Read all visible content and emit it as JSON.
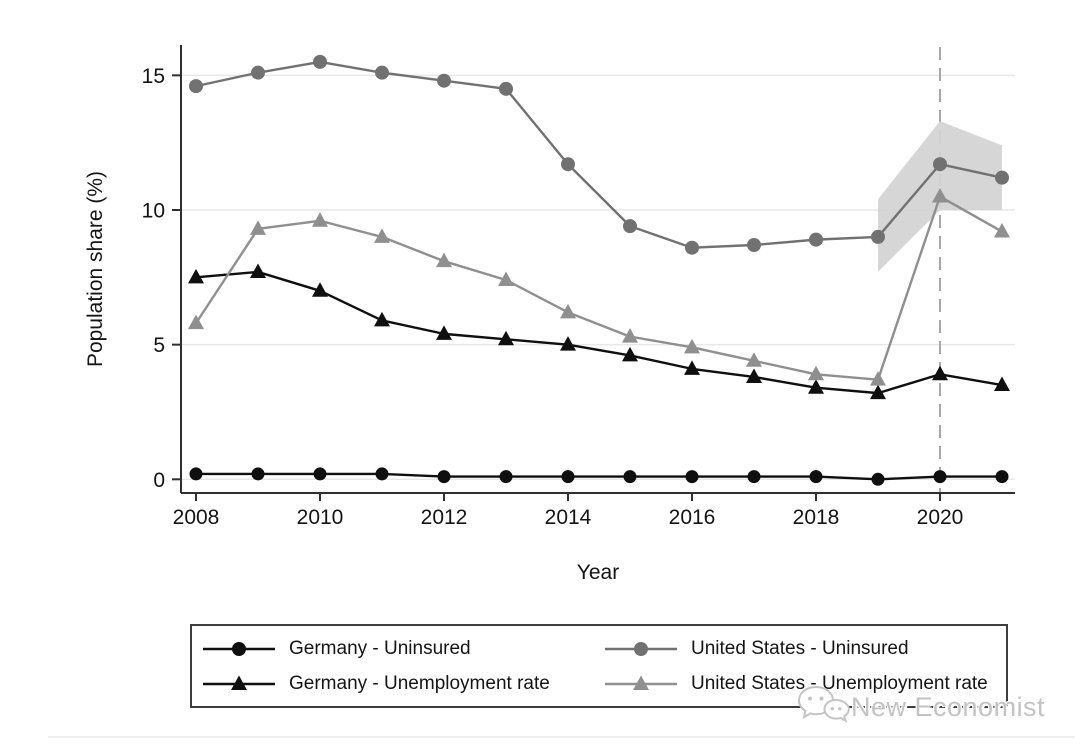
{
  "axes": {
    "y_label": "Population share (%)",
    "x_label": "Year",
    "y_ticks": [
      0,
      5,
      10,
      15
    ],
    "x_ticks": [
      2008,
      2010,
      2012,
      2014,
      2016,
      2018,
      2020
    ],
    "ylim": [
      0,
      16.1
    ],
    "xlim": [
      2008,
      2021
    ]
  },
  "chart_data": {
    "type": "line",
    "title": "",
    "xlabel": "Year",
    "ylabel": "Population share (%)",
    "grid": "horizontal",
    "legend_position": "bottom",
    "x": [
      2008,
      2009,
      2010,
      2011,
      2012,
      2013,
      2014,
      2015,
      2016,
      2017,
      2018,
      2019,
      2020,
      2021
    ],
    "series": [
      {
        "name": "Germany - Uninsured",
        "marker": "circle",
        "color": "#0f0f0f",
        "marker_size": 6.5,
        "values": [
          0.2,
          0.2,
          0.2,
          0.2,
          0.1,
          0.1,
          0.1,
          0.1,
          0.1,
          0.1,
          0.1,
          0.0,
          0.1,
          0.1
        ]
      },
      {
        "name": "Germany - Unemployment rate",
        "marker": "triangle",
        "color": "#0f0f0f",
        "marker_size": 8,
        "values": [
          7.5,
          7.7,
          7.0,
          5.9,
          5.4,
          5.2,
          5.0,
          4.6,
          4.1,
          3.8,
          3.4,
          3.2,
          3.9,
          3.5
        ]
      },
      {
        "name": "United States - Uninsured",
        "marker": "circle",
        "color": "#717171",
        "marker_size": 7,
        "values": [
          14.6,
          15.1,
          15.5,
          15.1,
          14.8,
          14.5,
          11.7,
          9.4,
          8.6,
          8.7,
          8.9,
          9.0,
          11.7,
          11.2
        ]
      },
      {
        "name": "United States - Unemployment rate",
        "marker": "triangle",
        "color": "#8f8f8f",
        "marker_size": 8,
        "values": [
          5.8,
          9.3,
          9.6,
          9.0,
          8.1,
          7.4,
          6.2,
          5.3,
          4.9,
          4.4,
          3.9,
          3.7,
          10.5,
          9.2
        ]
      }
    ],
    "confidence_band": {
      "series": "United States - Uninsured",
      "x": [
        2019,
        2020,
        2021
      ],
      "upper": [
        10.4,
        13.3,
        12.4
      ],
      "lower": [
        7.7,
        10.0,
        10.0
      ],
      "color": "#d3d3d3"
    },
    "vline": {
      "x": 2020,
      "style": "dashed",
      "color": "#a8a8a8"
    }
  },
  "legend": {
    "entries": [
      {
        "label": "Germany - Uninsured",
        "marker": "circle",
        "color": "#0f0f0f"
      },
      {
        "label": "Germany - Unemployment rate",
        "marker": "triangle",
        "color": "#0f0f0f"
      },
      {
        "label": "United States - Uninsured",
        "marker": "circle",
        "color": "#717171"
      },
      {
        "label": "United States - Unemployment rate",
        "marker": "triangle",
        "color": "#8f8f8f"
      }
    ]
  },
  "watermark": {
    "text": "New Economist",
    "icon": "wechat-bubbles-icon"
  },
  "colors": {
    "grid": "#e7e7e7",
    "axis": "#2f2f2f",
    "tick_text": "#141414",
    "band": "#d3d3d3",
    "vline": "#a8a8a8",
    "background": "#ffffff"
  }
}
